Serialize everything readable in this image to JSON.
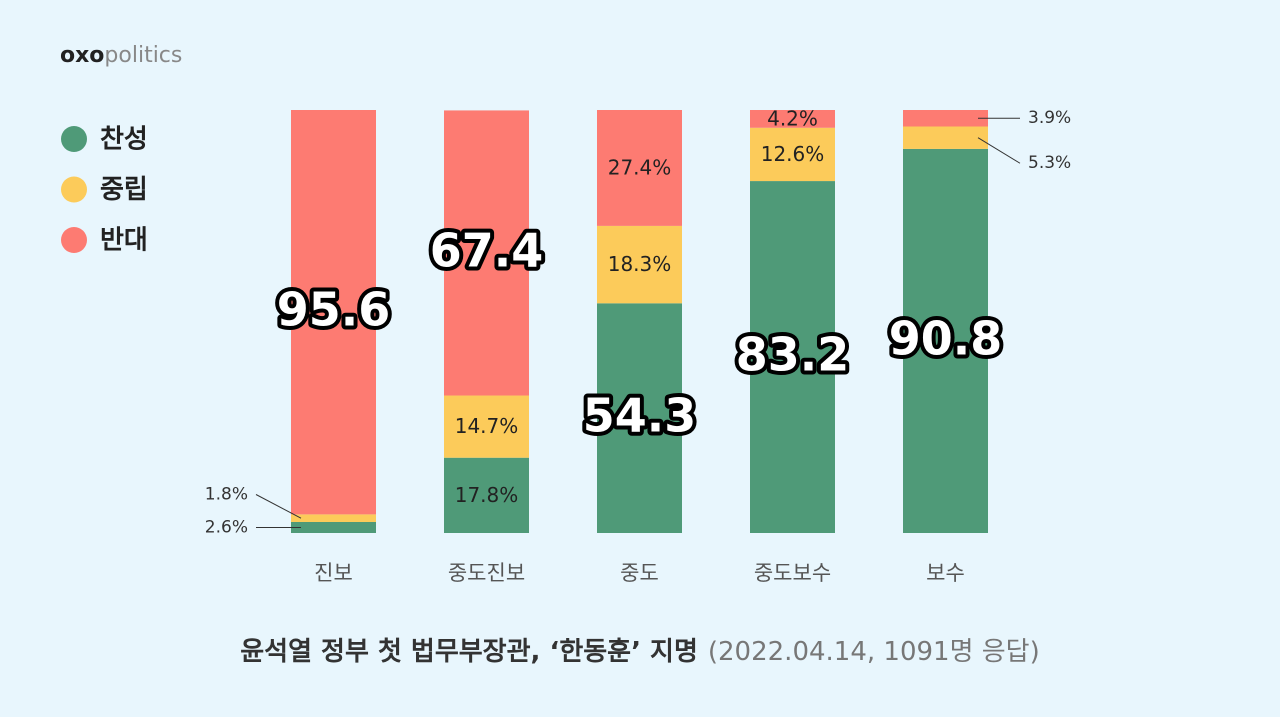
{
  "brand": {
    "bold": "oxo",
    "light": "politics"
  },
  "chart_data": {
    "type": "stacked_bar",
    "title": "윤석열 정부 첫 법무부장관, ‘한동훈’ 지명",
    "subtitle": "(2022.04.14, 1091명  응답)",
    "categories": [
      "진보",
      "중도진보",
      "중도",
      "중도보수",
      "보수"
    ],
    "ylim": [
      0,
      100
    ],
    "legend": "top-left",
    "series": [
      {
        "name": "찬성",
        "color": "#4f9a78",
        "values": [
          2.6,
          17.8,
          54.3,
          83.2,
          90.8
        ],
        "value_labels": [
          "2.6%",
          "17.8%",
          "54.3",
          "83.2",
          "90.8"
        ]
      },
      {
        "name": "중립",
        "color": "#fccb5a",
        "values": [
          1.8,
          14.7,
          18.3,
          12.6,
          5.3
        ],
        "value_labels": [
          "1.8%",
          "14.7%",
          "18.3%",
          "12.6%",
          "5.3%"
        ]
      },
      {
        "name": "반대",
        "color": "#fd7b72",
        "values": [
          95.6,
          67.4,
          27.4,
          4.2,
          3.9
        ],
        "value_labels": [
          "95.6",
          "67.4",
          "27.4%",
          "4.2%",
          "3.9%"
        ]
      }
    ]
  }
}
